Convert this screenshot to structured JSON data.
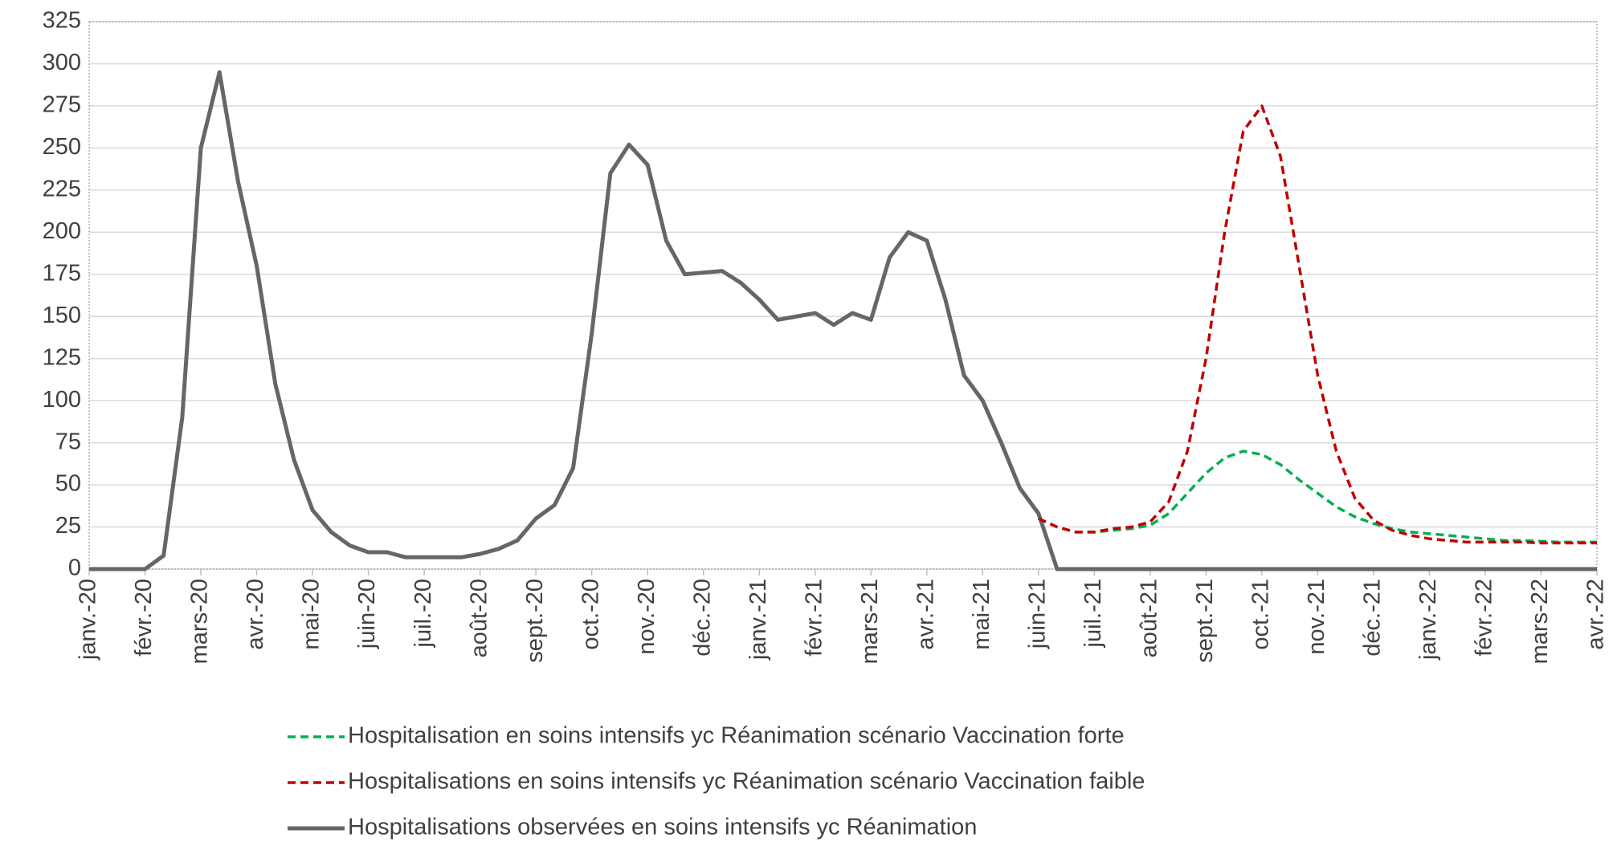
{
  "chart_data": {
    "type": "line",
    "categories": [
      "janv.-20",
      null,
      null,
      "févr.-20",
      null,
      null,
      "mars-20",
      null,
      null,
      "avr.-20",
      null,
      null,
      "mai-20",
      null,
      null,
      "juin-20",
      null,
      null,
      "juil.-20",
      null,
      null,
      "août-20",
      null,
      null,
      "sept.-20",
      null,
      null,
      "oct.-20",
      null,
      null,
      "nov.-20",
      null,
      null,
      "déc.-20",
      null,
      null,
      "janv.-21",
      null,
      null,
      "févr.-21",
      null,
      null,
      "mars-21",
      null,
      null,
      "avr.-21",
      null,
      null,
      "mai-21",
      null,
      null,
      "juin-21",
      null,
      null,
      "juil.-21",
      null,
      null,
      "août-21",
      null,
      null,
      "sept.-21",
      null,
      null,
      "oct.-21",
      null,
      null,
      "nov.-21",
      null,
      null,
      "déc.-21",
      null,
      null,
      "janv.-22",
      null,
      null,
      "févr.-22",
      null,
      null,
      "mars-22",
      null,
      null,
      "avr.-22"
    ],
    "series": [
      {
        "name": "Hospitalisation en soins intensifs yc Réanimation scénario Vaccination forte",
        "color": "#00b050",
        "style": "dashed",
        "values": [
          null,
          null,
          null,
          null,
          null,
          null,
          null,
          null,
          null,
          null,
          null,
          null,
          null,
          null,
          null,
          null,
          null,
          null,
          null,
          null,
          null,
          null,
          null,
          null,
          null,
          null,
          null,
          null,
          null,
          null,
          null,
          null,
          null,
          null,
          null,
          null,
          null,
          null,
          null,
          null,
          null,
          null,
          null,
          null,
          null,
          null,
          null,
          null,
          null,
          null,
          null,
          30,
          25,
          22,
          22,
          23,
          24,
          26,
          33,
          45,
          57,
          66,
          70,
          68,
          62,
          53,
          45,
          37,
          31,
          27,
          24,
          22,
          21,
          20,
          19,
          18,
          17,
          17,
          16.5,
          16,
          16,
          16
        ]
      },
      {
        "name": "Hospitalisations en soins intensifs yc Réanimation scénario Vaccination faible",
        "color": "#c00000",
        "style": "dashed",
        "values": [
          null,
          null,
          null,
          null,
          null,
          null,
          null,
          null,
          null,
          null,
          null,
          null,
          null,
          null,
          null,
          null,
          null,
          null,
          null,
          null,
          null,
          null,
          null,
          null,
          null,
          null,
          null,
          null,
          null,
          null,
          null,
          null,
          null,
          null,
          null,
          null,
          null,
          null,
          null,
          null,
          null,
          null,
          null,
          null,
          null,
          null,
          null,
          null,
          null,
          null,
          null,
          30,
          25,
          22,
          22,
          24,
          25,
          28,
          40,
          70,
          125,
          200,
          260,
          275,
          245,
          180,
          115,
          70,
          42,
          29,
          23,
          20,
          18,
          17,
          16,
          16,
          16,
          16,
          15.5,
          15.5,
          15.5,
          15.5
        ]
      },
      {
        "name": "Hospitalisations observées en soins intensifs yc Réanimation",
        "color": "#666666",
        "style": "solid",
        "values": [
          0,
          0,
          0,
          0,
          8,
          90,
          250,
          295,
          230,
          180,
          110,
          65,
          35,
          22,
          14,
          10,
          10,
          7,
          7,
          7,
          7,
          9,
          12,
          17,
          30,
          38,
          60,
          140,
          235,
          252,
          240,
          195,
          175,
          176,
          177,
          170,
          160,
          148,
          150,
          152,
          145,
          152,
          148,
          185,
          200,
          195,
          160,
          115,
          100,
          75,
          48,
          33,
          0,
          0,
          0,
          0,
          0,
          0,
          0,
          0,
          0,
          0,
          0,
          0,
          0,
          0,
          0,
          0,
          0,
          0,
          0,
          0,
          0,
          0,
          0,
          0,
          0,
          0,
          0,
          0,
          0,
          0
        ]
      }
    ],
    "ylim": [
      0,
      325
    ],
    "yticks": [
      0,
      25,
      50,
      75,
      100,
      125,
      150,
      175,
      200,
      225,
      250,
      275,
      300,
      325
    ],
    "grid": true,
    "legend": "bottom"
  }
}
